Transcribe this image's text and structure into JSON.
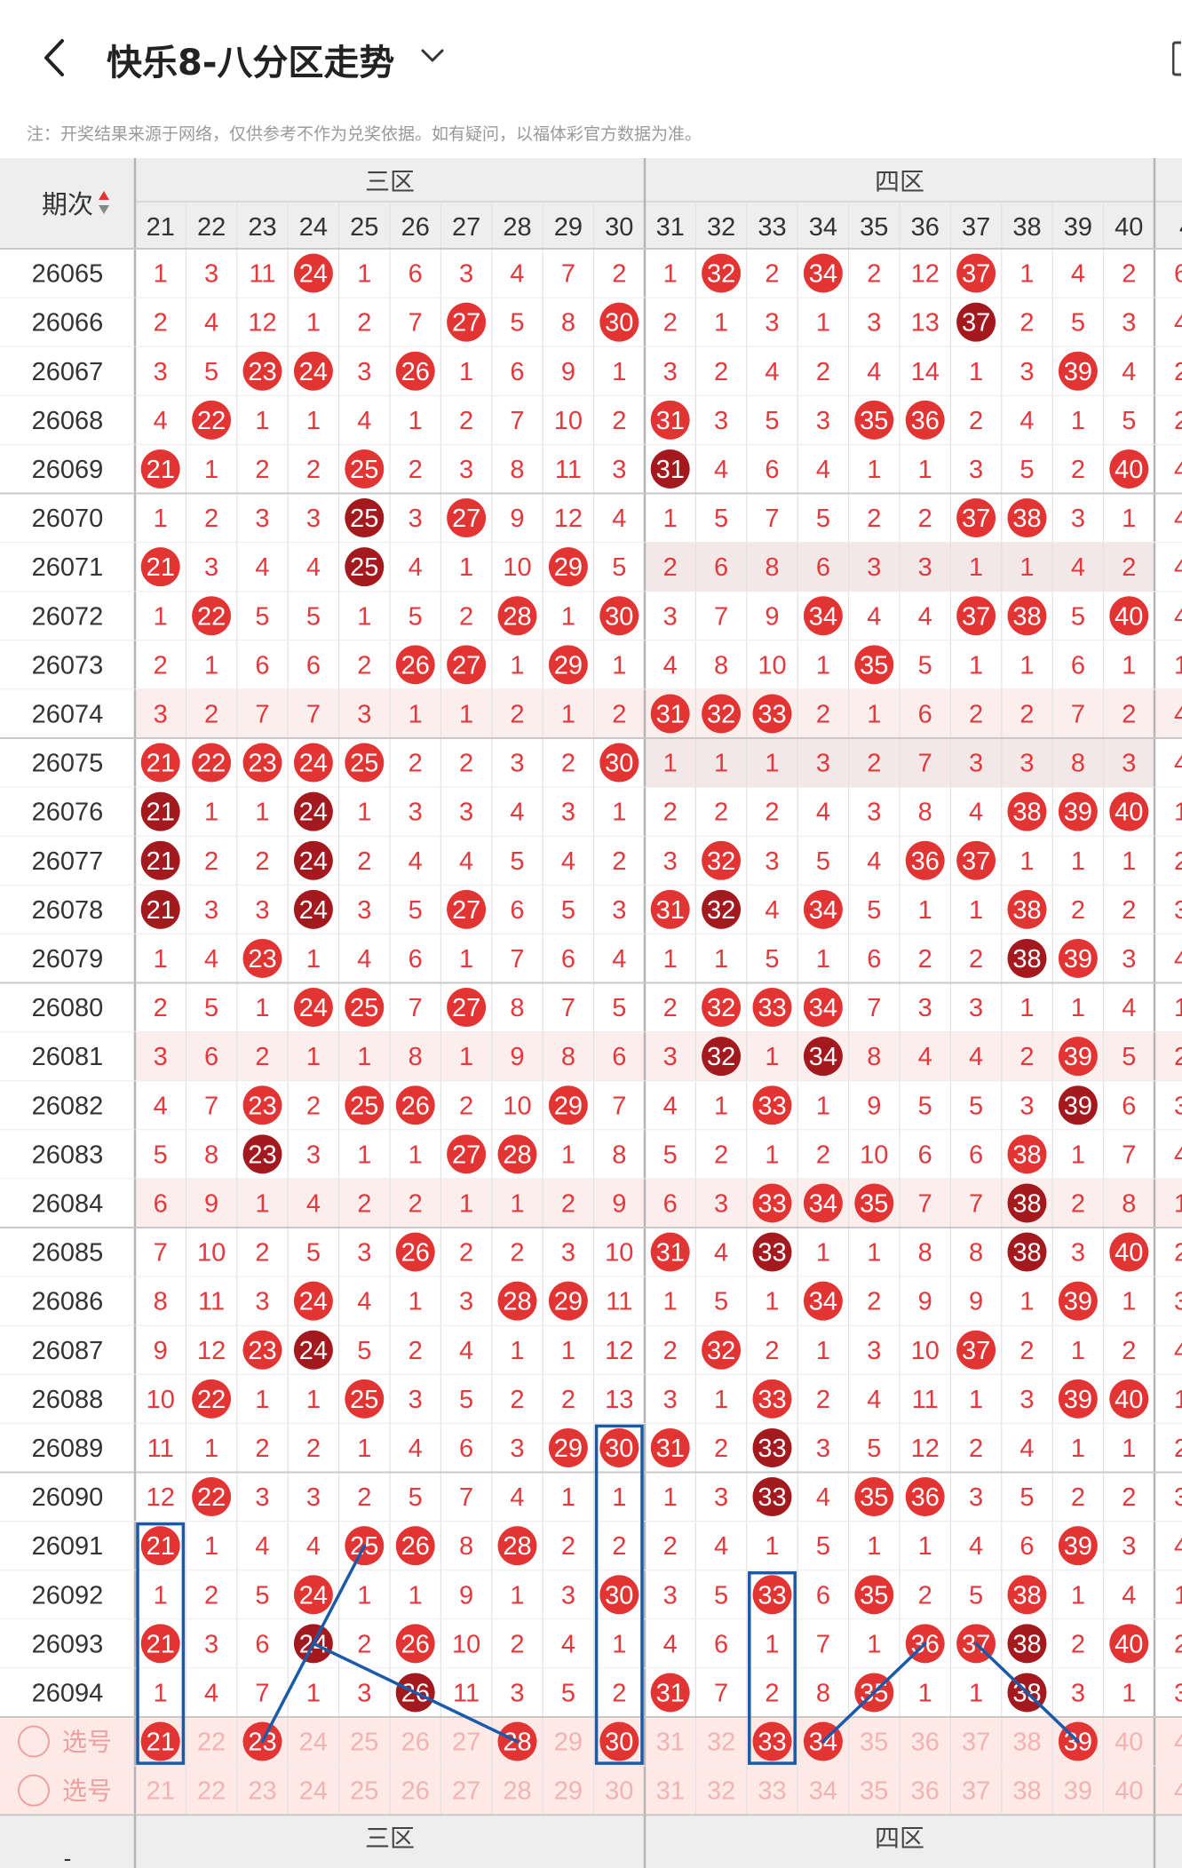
{
  "header": {
    "title": "快乐8-八分区走势",
    "note": "注：开奖结果来源于网络，仅供参考不作为兑奖依据。如有疑问，以福体彩官方数据为准。"
  },
  "table": {
    "period_header": "期次",
    "zones": [
      "三区",
      "四区"
    ],
    "columns": [
      "21",
      "22",
      "23",
      "24",
      "25",
      "26",
      "27",
      "28",
      "29",
      "30",
      "31",
      "32",
      "33",
      "34",
      "35",
      "36",
      "37",
      "38",
      "39",
      "40"
    ],
    "partial_column_label": "4",
    "rows": [
      {
        "period": "26065",
        "cells": [
          "1",
          "3",
          "11",
          "24",
          "1",
          "6",
          "3",
          "4",
          "7",
          "2",
          "1",
          "32",
          "2",
          "34",
          "2",
          "12",
          "37",
          "1",
          "4",
          "2"
        ],
        "partial": "6"
      },
      {
        "period": "26066",
        "cells": [
          "2",
          "4",
          "12",
          "1",
          "2",
          "7",
          "27",
          "5",
          "8",
          "30",
          "2",
          "1",
          "3",
          "1",
          "3",
          "13",
          "37",
          "2",
          "5",
          "3"
        ],
        "partial": "4"
      },
      {
        "period": "26067",
        "cells": [
          "3",
          "5",
          "23",
          "24",
          "3",
          "26",
          "1",
          "6",
          "9",
          "1",
          "3",
          "2",
          "4",
          "2",
          "4",
          "14",
          "1",
          "3",
          "39",
          "4"
        ],
        "partial": "2"
      },
      {
        "period": "26068",
        "cells": [
          "4",
          "22",
          "1",
          "1",
          "4",
          "1",
          "2",
          "7",
          "10",
          "2",
          "31",
          "3",
          "5",
          "3",
          "35",
          "36",
          "2",
          "4",
          "1",
          "5"
        ],
        "partial": "2"
      },
      {
        "period": "26069",
        "cells": [
          "21",
          "1",
          "2",
          "2",
          "25",
          "2",
          "3",
          "8",
          "11",
          "3",
          "31",
          "4",
          "6",
          "4",
          "1",
          "1",
          "3",
          "5",
          "2",
          "40"
        ],
        "partial": "4"
      },
      {
        "period": "26070",
        "cells": [
          "1",
          "2",
          "3",
          "3",
          "25",
          "3",
          "27",
          "9",
          "12",
          "4",
          "1",
          "5",
          "7",
          "5",
          "2",
          "2",
          "37",
          "38",
          "3",
          "1"
        ],
        "partial": "4"
      },
      {
        "period": "26071",
        "cells": [
          "21",
          "3",
          "4",
          "4",
          "25",
          "4",
          "1",
          "10",
          "29",
          "5",
          "2",
          "6",
          "8",
          "6",
          "3",
          "3",
          "1",
          "1",
          "4",
          "2"
        ],
        "partial": "4"
      },
      {
        "period": "26072",
        "cells": [
          "1",
          "22",
          "5",
          "5",
          "1",
          "5",
          "2",
          "28",
          "1",
          "30",
          "3",
          "7",
          "9",
          "34",
          "4",
          "4",
          "37",
          "38",
          "5",
          "40"
        ],
        "partial": "4"
      },
      {
        "period": "26073",
        "cells": [
          "2",
          "1",
          "6",
          "6",
          "2",
          "26",
          "27",
          "1",
          "29",
          "1",
          "4",
          "8",
          "10",
          "1",
          "35",
          "5",
          "1",
          "1",
          "6",
          "1"
        ],
        "partial": "1"
      },
      {
        "period": "26074",
        "cells": [
          "3",
          "2",
          "7",
          "7",
          "3",
          "1",
          "1",
          "2",
          "1",
          "2",
          "31",
          "32",
          "33",
          "2",
          "1",
          "6",
          "2",
          "2",
          "7",
          "2"
        ],
        "partial": "4"
      },
      {
        "period": "26075",
        "cells": [
          "21",
          "22",
          "23",
          "24",
          "25",
          "2",
          "2",
          "3",
          "2",
          "30",
          "1",
          "1",
          "1",
          "3",
          "2",
          "7",
          "3",
          "3",
          "8",
          "3"
        ],
        "partial": "4"
      },
      {
        "period": "26076",
        "cells": [
          "21",
          "1",
          "1",
          "24",
          "1",
          "3",
          "3",
          "4",
          "3",
          "1",
          "2",
          "2",
          "2",
          "4",
          "3",
          "8",
          "4",
          "38",
          "39",
          "40"
        ],
        "partial": "1"
      },
      {
        "period": "26077",
        "cells": [
          "21",
          "2",
          "2",
          "24",
          "2",
          "4",
          "4",
          "5",
          "4",
          "2",
          "3",
          "32",
          "3",
          "5",
          "4",
          "36",
          "37",
          "1",
          "1",
          "1"
        ],
        "partial": "2"
      },
      {
        "period": "26078",
        "cells": [
          "21",
          "3",
          "3",
          "24",
          "3",
          "5",
          "27",
          "6",
          "5",
          "3",
          "31",
          "32",
          "4",
          "34",
          "5",
          "1",
          "1",
          "38",
          "2",
          "2"
        ],
        "partial": "3"
      },
      {
        "period": "26079",
        "cells": [
          "1",
          "4",
          "23",
          "1",
          "4",
          "6",
          "1",
          "7",
          "6",
          "4",
          "1",
          "1",
          "5",
          "1",
          "6",
          "2",
          "2",
          "38",
          "39",
          "3"
        ],
        "partial": "4"
      },
      {
        "period": "26080",
        "cells": [
          "2",
          "5",
          "1",
          "24",
          "25",
          "7",
          "27",
          "8",
          "7",
          "5",
          "2",
          "32",
          "33",
          "34",
          "7",
          "3",
          "3",
          "1",
          "1",
          "4"
        ],
        "partial": "1"
      },
      {
        "period": "26081",
        "cells": [
          "3",
          "6",
          "2",
          "1",
          "1",
          "8",
          "1",
          "9",
          "8",
          "6",
          "3",
          "32",
          "1",
          "34",
          "8",
          "4",
          "4",
          "2",
          "39",
          "5"
        ],
        "partial": "2"
      },
      {
        "period": "26082",
        "cells": [
          "4",
          "7",
          "23",
          "2",
          "25",
          "26",
          "2",
          "10",
          "29",
          "7",
          "4",
          "1",
          "33",
          "1",
          "9",
          "5",
          "5",
          "3",
          "39",
          "6"
        ],
        "partial": "3"
      },
      {
        "period": "26083",
        "cells": [
          "5",
          "8",
          "23",
          "3",
          "1",
          "1",
          "27",
          "28",
          "1",
          "8",
          "5",
          "2",
          "1",
          "2",
          "10",
          "6",
          "6",
          "38",
          "1",
          "7"
        ],
        "partial": "4"
      },
      {
        "period": "26084",
        "cells": [
          "6",
          "9",
          "1",
          "4",
          "2",
          "2",
          "1",
          "1",
          "2",
          "9",
          "6",
          "3",
          "33",
          "34",
          "35",
          "7",
          "7",
          "38",
          "2",
          "8"
        ],
        "partial": "1"
      },
      {
        "period": "26085",
        "cells": [
          "7",
          "10",
          "2",
          "5",
          "3",
          "26",
          "2",
          "2",
          "3",
          "10",
          "31",
          "4",
          "33",
          "1",
          "1",
          "8",
          "8",
          "38",
          "3",
          "40"
        ],
        "partial": "2"
      },
      {
        "period": "26086",
        "cells": [
          "8",
          "11",
          "3",
          "24",
          "4",
          "1",
          "3",
          "28",
          "29",
          "11",
          "1",
          "5",
          "1",
          "34",
          "2",
          "9",
          "9",
          "1",
          "39",
          "1"
        ],
        "partial": "3"
      },
      {
        "period": "26087",
        "cells": [
          "9",
          "12",
          "23",
          "24",
          "5",
          "2",
          "4",
          "1",
          "1",
          "12",
          "2",
          "32",
          "2",
          "1",
          "3",
          "10",
          "37",
          "2",
          "1",
          "2"
        ],
        "partial": "4"
      },
      {
        "period": "26088",
        "cells": [
          "10",
          "22",
          "1",
          "1",
          "25",
          "3",
          "5",
          "2",
          "2",
          "13",
          "3",
          "1",
          "33",
          "2",
          "4",
          "11",
          "1",
          "3",
          "39",
          "40"
        ],
        "partial": "1"
      },
      {
        "period": "26089",
        "cells": [
          "11",
          "1",
          "2",
          "2",
          "1",
          "4",
          "6",
          "3",
          "29",
          "30",
          "31",
          "2",
          "33",
          "3",
          "5",
          "12",
          "2",
          "4",
          "1",
          "1"
        ],
        "partial": "2"
      },
      {
        "period": "26090",
        "cells": [
          "12",
          "22",
          "3",
          "3",
          "2",
          "5",
          "7",
          "4",
          "1",
          "1",
          "1",
          "3",
          "33",
          "4",
          "35",
          "36",
          "3",
          "5",
          "2",
          "2"
        ],
        "partial": "3"
      },
      {
        "period": "26091",
        "cells": [
          "21",
          "1",
          "4",
          "4",
          "25",
          "26",
          "8",
          "28",
          "2",
          "2",
          "2",
          "4",
          "1",
          "5",
          "1",
          "1",
          "4",
          "6",
          "39",
          "3"
        ],
        "partial": "4"
      },
      {
        "period": "26092",
        "cells": [
          "1",
          "2",
          "5",
          "24",
          "1",
          "1",
          "9",
          "1",
          "3",
          "30",
          "3",
          "5",
          "33",
          "6",
          "35",
          "2",
          "5",
          "38",
          "1",
          "4"
        ],
        "partial": "1"
      },
      {
        "period": "26093",
        "cells": [
          "21",
          "3",
          "6",
          "24",
          "2",
          "26",
          "10",
          "2",
          "4",
          "1",
          "4",
          "6",
          "1",
          "7",
          "1",
          "36",
          "37",
          "38",
          "2",
          "40"
        ],
        "partial": "2"
      },
      {
        "period": "26094",
        "cells": [
          "1",
          "4",
          "7",
          "1",
          "3",
          "26",
          "11",
          "3",
          "5",
          "2",
          "31",
          "7",
          "2",
          "8",
          "35",
          "1",
          "1",
          "38",
          "3",
          "1"
        ],
        "partial": "3"
      }
    ],
    "select_rows": [
      {
        "label": "选号",
        "selected": [
          "21",
          "23",
          "28",
          "30",
          "33",
          "34",
          "39"
        ]
      },
      {
        "label": "选号",
        "selected": []
      }
    ],
    "footer_period_label": "-",
    "colors": {
      "ball_red": "#e33434",
      "ball_dark": "#a3191d",
      "cell_text": "#e4393c",
      "select_text": "#f2b3b3",
      "select_row_bg": "#fde9e6",
      "highlight_box": "#1a5aa8",
      "header_bg": "#eeeeee"
    }
  }
}
